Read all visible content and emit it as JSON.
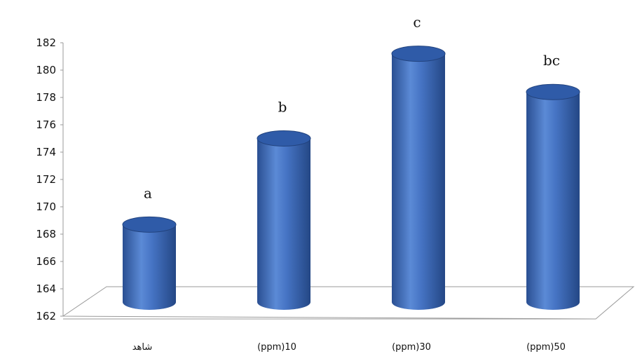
{
  "chart_data": {
    "type": "bar",
    "style": "3d-cylinder",
    "title": "",
    "xlabel": "",
    "ylabel": "",
    "categories": [
      "شاهد",
      "(ppm)10",
      "(ppm)30",
      "(ppm)50"
    ],
    "series": [
      {
        "values": [
          168.7,
          175.0,
          181.2,
          178.4
        ]
      }
    ],
    "data_labels": [
      "a",
      "b",
      "c",
      "bc"
    ],
    "ylim": [
      162,
      182
    ],
    "yticks": [
      "162",
      "164",
      "166",
      "168",
      "170",
      "172",
      "174",
      "176",
      "178",
      "180",
      "182"
    ],
    "grid": false,
    "legend": "none",
    "colors": {
      "bar": "#3d6fc0",
      "bar_dark": "#2a4f92",
      "bar_light": "#7aa3e3",
      "top": "#2f5ba8"
    }
  }
}
